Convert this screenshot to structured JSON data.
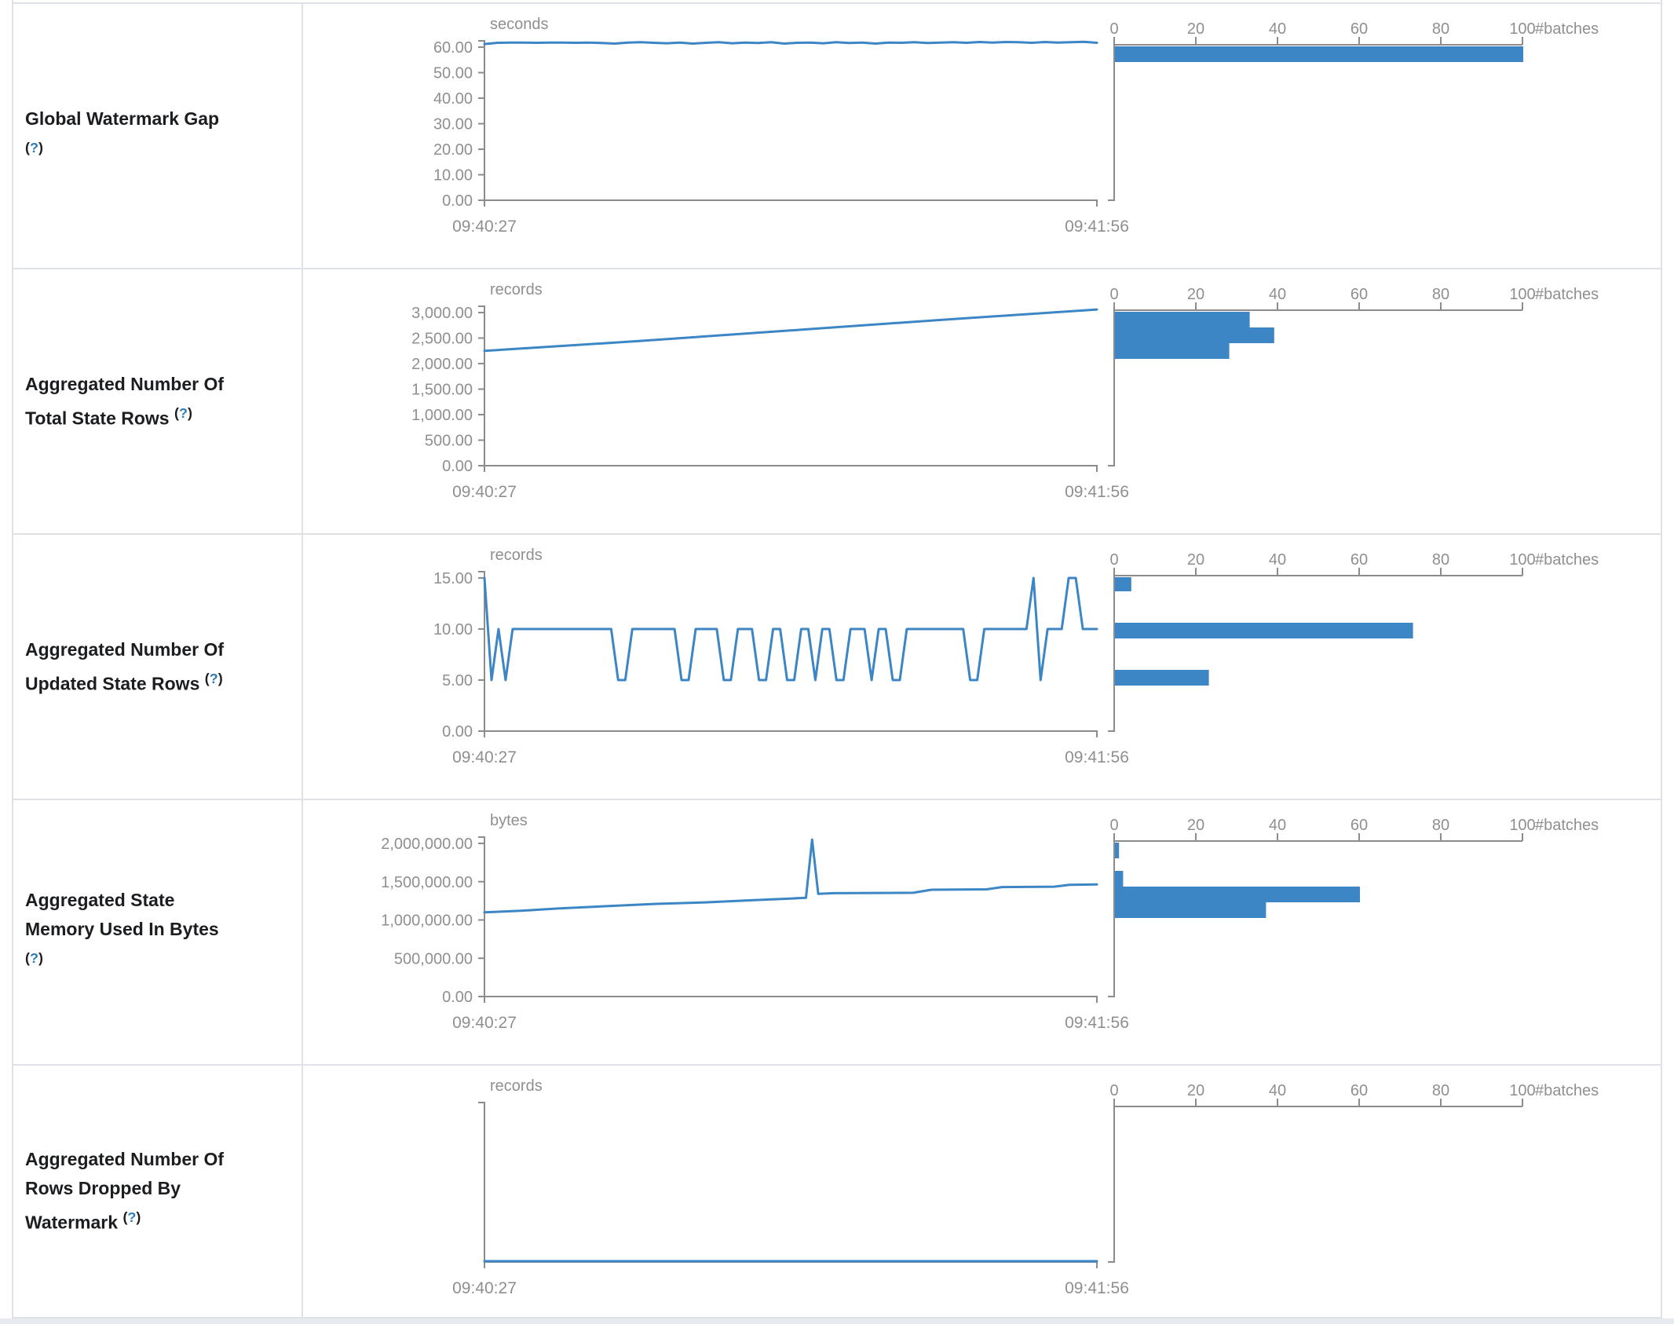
{
  "colors": {
    "line": "#3c86c5",
    "bar": "#3d86c6",
    "axis": "#8c8c8c",
    "muted_text": "#8f8f8f",
    "label_text": "#1b1d20",
    "help_link": "#2b7cb9",
    "border": "#dee2e6",
    "page_strip": "#e7eaee"
  },
  "time_axis": {
    "start": "09:40:27",
    "end": "09:41:56"
  },
  "hist_axis": {
    "ticks": [
      "0",
      "20",
      "40",
      "60",
      "80",
      "100"
    ],
    "unit": "#batches",
    "max": 100
  },
  "metrics": [
    {
      "label": "Global Watermark Gap",
      "help_open": "(",
      "help_q": "?",
      "help_close": ")"
    },
    {
      "label": "Aggregated Number Of Total State Rows",
      "help_open": "(",
      "help_q": "?",
      "help_close": ")"
    },
    {
      "label": "Aggregated Number Of Updated State Rows",
      "help_open": "(",
      "help_q": "?",
      "help_close": ")"
    },
    {
      "label": "Aggregated State Memory Used In Bytes",
      "help_open": "(",
      "help_q": "?",
      "help_close": ")"
    },
    {
      "label": "Aggregated Number Of Rows Dropped By Watermark",
      "help_open": "(",
      "help_q": "?",
      "help_close": ")"
    }
  ],
  "chart_data": [
    {
      "metric": "Global Watermark Gap",
      "timeline": {
        "type": "line",
        "ylabel": "seconds",
        "x_start": "09:40:27",
        "x_end": "09:41:56",
        "y_tick_labels": [
          "60.00",
          "50.00",
          "40.00",
          "30.00",
          "20.00",
          "10.00",
          "0.00"
        ],
        "ymax": 60,
        "values": [
          61.2,
          61.7,
          61.8,
          61.8,
          61.7,
          61.8,
          61.8,
          61.7,
          61.8,
          61.6,
          61.4,
          61.8,
          61.9,
          61.7,
          61.5,
          61.8,
          61.4,
          61.7,
          61.9,
          61.5,
          61.8,
          61.6,
          61.9,
          61.4,
          61.7,
          61.8,
          61.5,
          61.9,
          61.6,
          61.8,
          61.4,
          61.8,
          61.7,
          61.9,
          61.6,
          61.8,
          61.9,
          61.7,
          62.0,
          61.8,
          62.0,
          61.9,
          61.7,
          62.0,
          61.8,
          61.9,
          62.1,
          61.7
        ]
      },
      "histogram": {
        "type": "bar",
        "xlabel": "#batches",
        "x_ticks": [
          0,
          20,
          40,
          60,
          80,
          100
        ],
        "bins": [
          {
            "y": 54,
            "h": 20,
            "count": 100
          }
        ]
      }
    },
    {
      "metric": "Aggregated Number Of Total State Rows",
      "timeline": {
        "type": "line",
        "ylabel": "records",
        "x_start": "09:40:27",
        "x_end": "09:41:56",
        "y_tick_labels": [
          "3,000.00",
          "2,500.00",
          "2,000.00",
          "1,500.00",
          "1,000.00",
          "500.00",
          "0.00"
        ],
        "ymax": 3000,
        "points": [
          [
            0,
            2250
          ],
          [
            0.25,
            2440
          ],
          [
            0.5,
            2650
          ],
          [
            0.75,
            2860
          ],
          [
            1,
            3060
          ]
        ]
      },
      "histogram": {
        "type": "bar",
        "xlabel": "#batches",
        "x_ticks": [
          0,
          20,
          40,
          60,
          80,
          100
        ],
        "bins": [
          {
            "y": 54,
            "h": 20,
            "count": 33
          },
          {
            "y": 74,
            "h": 20,
            "count": 39
          },
          {
            "y": 94,
            "h": 20,
            "count": 28
          }
        ]
      }
    },
    {
      "metric": "Aggregated Number Of Updated State Rows",
      "timeline": {
        "type": "line",
        "ylabel": "records",
        "x_start": "09:40:27",
        "x_end": "09:41:56",
        "y_tick_labels": [
          "15.00",
          "10.00",
          "5.00",
          "0.00"
        ],
        "ymax": 15,
        "values": [
          15,
          5,
          10,
          5,
          10,
          10,
          10,
          10,
          10,
          10,
          10,
          10,
          10,
          10,
          10,
          10,
          10,
          10,
          10,
          5,
          5,
          10,
          10,
          10,
          10,
          10,
          10,
          10,
          5,
          5,
          10,
          10,
          10,
          10,
          5,
          5,
          10,
          10,
          10,
          5,
          5,
          10,
          10,
          5,
          5,
          10,
          10,
          5,
          10,
          10,
          5,
          5,
          10,
          10,
          10,
          5,
          10,
          10,
          5,
          5,
          10,
          10,
          10,
          10,
          10,
          10,
          10,
          10,
          10,
          5,
          5,
          10,
          10,
          10,
          10,
          10,
          10,
          10,
          15,
          5,
          10,
          10,
          10,
          15,
          15,
          10,
          10,
          10
        ]
      },
      "histogram": {
        "type": "bar",
        "xlabel": "#batches",
        "x_ticks": [
          0,
          20,
          40,
          60,
          80,
          100
        ],
        "bins": [
          {
            "y": 54,
            "h": 18,
            "count": 4
          },
          {
            "y": 112,
            "h": 20,
            "count": 73
          },
          {
            "y": 172,
            "h": 20,
            "count": 23
          }
        ]
      }
    },
    {
      "metric": "Aggregated State Memory Used In Bytes",
      "timeline": {
        "type": "line",
        "ylabel": "bytes",
        "x_start": "09:40:27",
        "x_end": "09:41:56",
        "y_tick_labels": [
          "2,000,000.00",
          "1,500,000.00",
          "1,000,000.00",
          "500,000.00",
          "0.00"
        ],
        "ymax": 2000000,
        "points": [
          [
            0,
            1100000
          ],
          [
            0.06,
            1120000
          ],
          [
            0.12,
            1150000
          ],
          [
            0.2,
            1180000
          ],
          [
            0.28,
            1210000
          ],
          [
            0.36,
            1230000
          ],
          [
            0.44,
            1260000
          ],
          [
            0.5,
            1280000
          ],
          [
            0.525,
            1290000
          ],
          [
            0.535,
            2050000
          ],
          [
            0.545,
            1340000
          ],
          [
            0.57,
            1350000
          ],
          [
            0.7,
            1355000
          ],
          [
            0.73,
            1395000
          ],
          [
            0.82,
            1400000
          ],
          [
            0.845,
            1430000
          ],
          [
            0.93,
            1435000
          ],
          [
            0.955,
            1460000
          ],
          [
            1,
            1465000
          ]
        ]
      },
      "histogram": {
        "type": "bar",
        "xlabel": "#batches",
        "x_ticks": [
          0,
          20,
          40,
          60,
          80,
          100
        ],
        "bins": [
          {
            "y": 54,
            "h": 20,
            "count": 1
          },
          {
            "y": 90,
            "h": 20,
            "count": 2
          },
          {
            "y": 110,
            "h": 20,
            "count": 60
          },
          {
            "y": 130,
            "h": 20,
            "count": 37
          }
        ]
      }
    },
    {
      "metric": "Aggregated Number Of Rows Dropped By Watermark",
      "timeline": {
        "type": "line",
        "ylabel": "records",
        "x_start": "09:40:27",
        "x_end": "09:41:56",
        "y_tick_labels": [],
        "ymax": 1,
        "points": [
          [
            0,
            0
          ],
          [
            1,
            0
          ]
        ]
      },
      "histogram": {
        "type": "bar",
        "xlabel": "#batches",
        "x_ticks": [
          0,
          20,
          40,
          60,
          80,
          100
        ],
        "bins": []
      }
    }
  ],
  "layout_rows": [
    336,
    336,
    336,
    336,
    320
  ]
}
